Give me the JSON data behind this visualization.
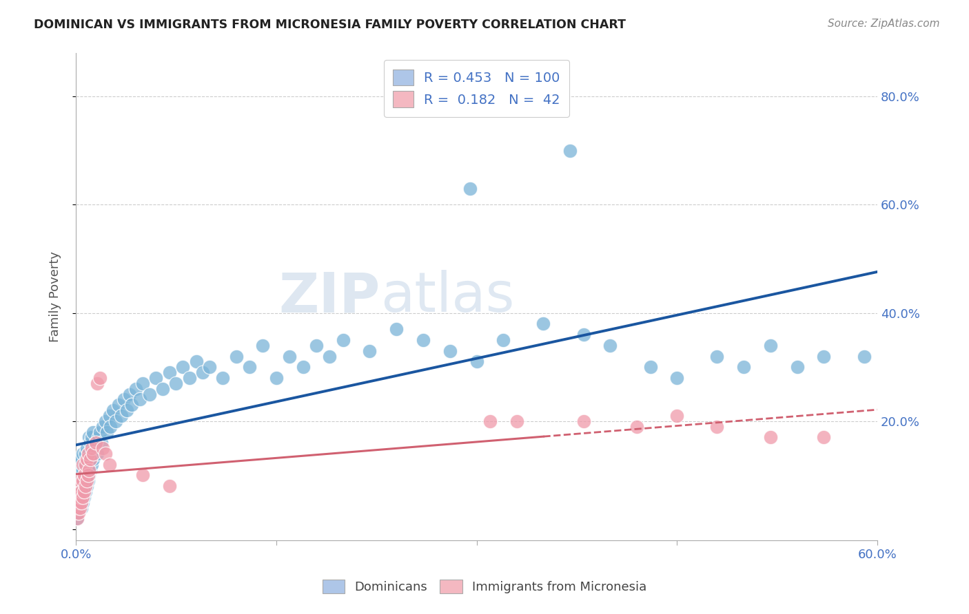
{
  "title": "DOMINICAN VS IMMIGRANTS FROM MICRONESIA FAMILY POVERTY CORRELATION CHART",
  "source": "Source: ZipAtlas.com",
  "ylabel": "Family Poverty",
  "xlim": [
    0.0,
    0.6
  ],
  "ylim": [
    -0.02,
    0.88
  ],
  "dominican_color": "#7ab4d8",
  "micronesia_color": "#f09aaa",
  "trendline_dominican_color": "#1a56a0",
  "trendline_micronesia_color": "#d06070",
  "background_color": "#ffffff",
  "dominican_x": [
    0.001,
    0.001,
    0.001,
    0.002,
    0.002,
    0.002,
    0.002,
    0.003,
    0.003,
    0.003,
    0.003,
    0.004,
    0.004,
    0.004,
    0.004,
    0.005,
    0.005,
    0.005,
    0.005,
    0.006,
    0.006,
    0.006,
    0.007,
    0.007,
    0.007,
    0.008,
    0.008,
    0.008,
    0.009,
    0.009,
    0.01,
    0.01,
    0.01,
    0.011,
    0.011,
    0.012,
    0.012,
    0.013,
    0.013,
    0.014,
    0.015,
    0.016,
    0.017,
    0.018,
    0.019,
    0.02,
    0.022,
    0.023,
    0.025,
    0.026,
    0.028,
    0.03,
    0.032,
    0.034,
    0.036,
    0.038,
    0.04,
    0.042,
    0.045,
    0.048,
    0.05,
    0.055,
    0.06,
    0.065,
    0.07,
    0.075,
    0.08,
    0.085,
    0.09,
    0.095,
    0.1,
    0.11,
    0.12,
    0.13,
    0.14,
    0.15,
    0.16,
    0.17,
    0.18,
    0.19,
    0.2,
    0.22,
    0.24,
    0.26,
    0.28,
    0.3,
    0.32,
    0.35,
    0.38,
    0.4,
    0.43,
    0.45,
    0.48,
    0.5,
    0.52,
    0.54,
    0.56,
    0.295,
    0.37,
    0.59
  ],
  "dominican_y": [
    0.02,
    0.03,
    0.04,
    0.06,
    0.08,
    0.1,
    0.12,
    0.05,
    0.07,
    0.09,
    0.11,
    0.04,
    0.06,
    0.09,
    0.13,
    0.05,
    0.08,
    0.11,
    0.14,
    0.06,
    0.09,
    0.12,
    0.07,
    0.1,
    0.14,
    0.08,
    0.11,
    0.15,
    0.09,
    0.13,
    0.1,
    0.14,
    0.17,
    0.11,
    0.16,
    0.12,
    0.17,
    0.13,
    0.18,
    0.15,
    0.16,
    0.14,
    0.17,
    0.18,
    0.16,
    0.19,
    0.2,
    0.18,
    0.21,
    0.19,
    0.22,
    0.2,
    0.23,
    0.21,
    0.24,
    0.22,
    0.25,
    0.23,
    0.26,
    0.24,
    0.27,
    0.25,
    0.28,
    0.26,
    0.29,
    0.27,
    0.3,
    0.28,
    0.31,
    0.29,
    0.3,
    0.28,
    0.32,
    0.3,
    0.34,
    0.28,
    0.32,
    0.3,
    0.34,
    0.32,
    0.35,
    0.33,
    0.37,
    0.35,
    0.33,
    0.31,
    0.35,
    0.38,
    0.36,
    0.34,
    0.3,
    0.28,
    0.32,
    0.3,
    0.34,
    0.3,
    0.32,
    0.63,
    0.7,
    0.32
  ],
  "micronesia_x": [
    0.001,
    0.001,
    0.001,
    0.002,
    0.002,
    0.002,
    0.003,
    0.003,
    0.003,
    0.004,
    0.004,
    0.005,
    0.005,
    0.005,
    0.006,
    0.006,
    0.007,
    0.007,
    0.008,
    0.008,
    0.009,
    0.009,
    0.01,
    0.011,
    0.012,
    0.013,
    0.015,
    0.016,
    0.018,
    0.02,
    0.022,
    0.025,
    0.05,
    0.07,
    0.31,
    0.33,
    0.38,
    0.42,
    0.45,
    0.48,
    0.52,
    0.56
  ],
  "micronesia_y": [
    0.02,
    0.04,
    0.06,
    0.03,
    0.05,
    0.08,
    0.04,
    0.06,
    0.09,
    0.05,
    0.07,
    0.06,
    0.09,
    0.12,
    0.07,
    0.1,
    0.08,
    0.12,
    0.09,
    0.13,
    0.1,
    0.14,
    0.11,
    0.13,
    0.15,
    0.14,
    0.16,
    0.27,
    0.28,
    0.15,
    0.14,
    0.12,
    0.1,
    0.08,
    0.2,
    0.2,
    0.2,
    0.19,
    0.21,
    0.19,
    0.17,
    0.17
  ]
}
